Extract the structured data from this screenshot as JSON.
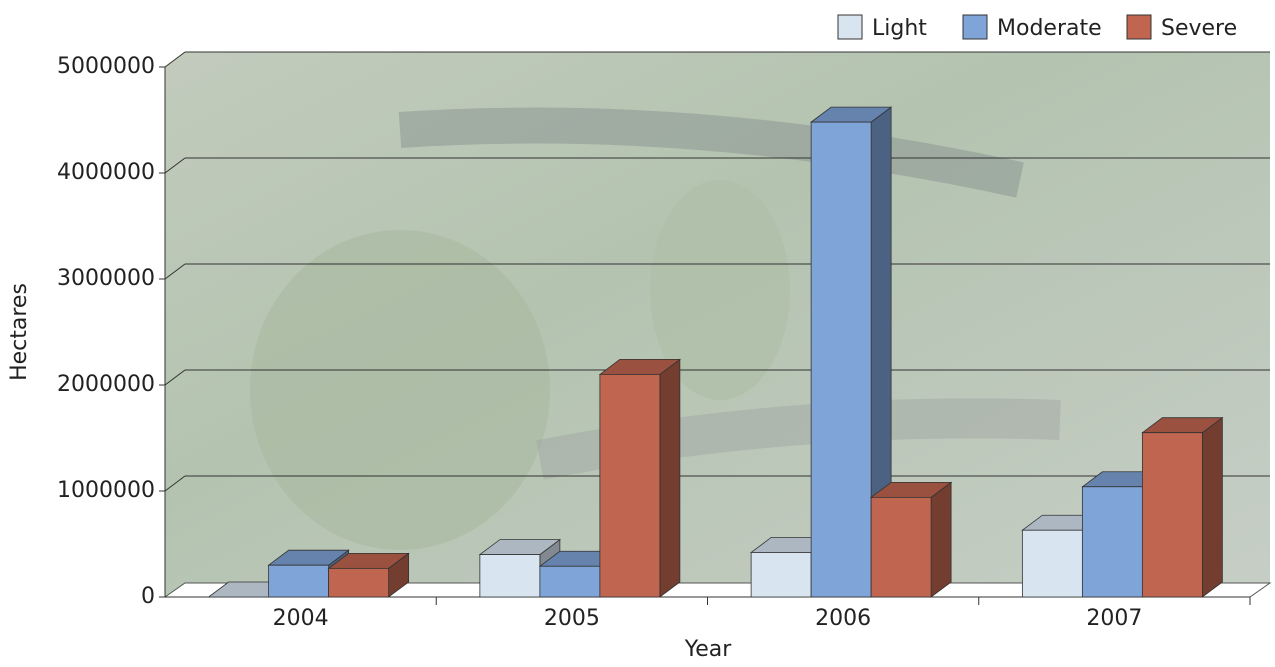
{
  "chart_data": {
    "type": "bar3d",
    "x_label": "Year",
    "y_label": "Hectares",
    "categories": [
      "2004",
      "2005",
      "2006",
      "2007"
    ],
    "series": [
      {
        "name": "Light",
        "color": "#d8e5f1",
        "values": [
          0,
          400000,
          420000,
          630000
        ]
      },
      {
        "name": "Moderate",
        "color": "#7fa4d8",
        "values": [
          300000,
          290000,
          4480000,
          1040000
        ]
      },
      {
        "name": "Severe",
        "color": "#c0654f",
        "values": [
          270000,
          2100000,
          940000,
          1550000
        ]
      }
    ],
    "ylim": [
      0,
      5000000
    ],
    "yticks": [
      0,
      1000000,
      2000000,
      3000000,
      4000000,
      5000000
    ],
    "grid": true,
    "legend": "top-right"
  }
}
